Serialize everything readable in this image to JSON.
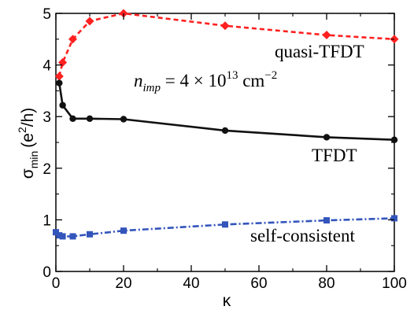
{
  "chart_data": {
    "type": "line",
    "xlabel": "κ",
    "ylabel": {
      "main": "σ",
      "sub": "min",
      "unit": "(e",
      "sup": "2",
      "unit_end": "/h)"
    },
    "xlim": [
      0,
      100
    ],
    "ylim": [
      0,
      5
    ],
    "xticks": [
      0,
      20,
      40,
      60,
      80,
      100
    ],
    "yticks": [
      0,
      1,
      2,
      3,
      4,
      5
    ],
    "grid": false,
    "annotation": {
      "base": "n",
      "sub": "imp",
      "mid": " = 4 × 10",
      "sup": "13",
      "unit": " cm",
      "unit_sup": "−2"
    },
    "series": [
      {
        "name": "quasi-TFDT",
        "color": "#ff2020",
        "marker": "diamond",
        "dash": "dashed",
        "x": [
          1,
          2,
          5,
          10,
          20,
          50,
          80,
          100
        ],
        "y": [
          3.78,
          4.05,
          4.5,
          4.85,
          5.0,
          4.76,
          4.58,
          4.5
        ]
      },
      {
        "name": "TFDT",
        "color": "#111111",
        "marker": "circle",
        "dash": "solid",
        "x": [
          1,
          2,
          5,
          10,
          20,
          50,
          80,
          100
        ],
        "y": [
          3.65,
          3.22,
          2.96,
          2.96,
          2.95,
          2.73,
          2.6,
          2.55
        ]
      },
      {
        "name": "self-consistent",
        "color": "#3355bb",
        "marker": "square",
        "dash": "dashdot",
        "x": [
          0,
          1,
          2,
          5,
          10,
          20,
          50,
          80,
          100
        ],
        "y": [
          0.76,
          0.7,
          0.68,
          0.68,
          0.72,
          0.79,
          0.91,
          0.99,
          1.03
        ]
      }
    ]
  }
}
